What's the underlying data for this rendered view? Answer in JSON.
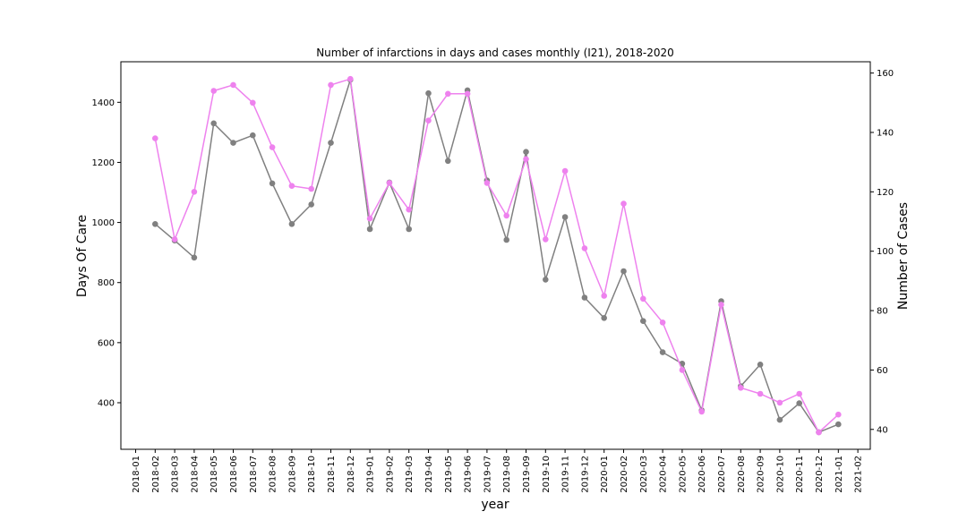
{
  "chart_data": {
    "type": "line",
    "title": "Number of infarctions in days and cases monthly (I21), 2018-2020",
    "xlabel": "year",
    "ylabel_left": "Days Of Care",
    "ylabel_right": "Number of Cases",
    "grid": false,
    "x_ticks": [
      "2018-01",
      "2018-02",
      "2018-03",
      "2018-04",
      "2018-05",
      "2018-06",
      "2018-07",
      "2018-08",
      "2018-09",
      "2018-10",
      "2018-11",
      "2018-12",
      "2019-01",
      "2019-02",
      "2019-03",
      "2019-04",
      "2019-05",
      "2019-06",
      "2019-07",
      "2019-08",
      "2019-09",
      "2019-10",
      "2019-11",
      "2019-12",
      "2020-01",
      "2020-02",
      "2020-03",
      "2020-04",
      "2020-05",
      "2020-06",
      "2020-07",
      "2020-08",
      "2020-09",
      "2020-10",
      "2020-11",
      "2020-12",
      "2021-01",
      "2021-02"
    ],
    "x": [
      "2018-02",
      "2018-03",
      "2018-04",
      "2018-05",
      "2018-06",
      "2018-07",
      "2018-08",
      "2018-09",
      "2018-10",
      "2018-11",
      "2018-12",
      "2019-01",
      "2019-02",
      "2019-03",
      "2019-04",
      "2019-05",
      "2019-06",
      "2019-07",
      "2019-08",
      "2019-09",
      "2019-10",
      "2019-11",
      "2019-12",
      "2020-01",
      "2020-02",
      "2020-03",
      "2020-04",
      "2020-05",
      "2020-06",
      "2020-07",
      "2020-08",
      "2020-09",
      "2020-10",
      "2020-11",
      "2020-12",
      "2021-01"
    ],
    "left_axis": {
      "ylim": [
        245,
        1535
      ],
      "ticks": [
        400,
        600,
        800,
        1000,
        1200,
        1400
      ],
      "color": "#808080"
    },
    "right_axis": {
      "ylim": [
        33.3,
        163.8
      ],
      "ticks": [
        40,
        60,
        80,
        100,
        120,
        140,
        160
      ],
      "color": "#ee82ee"
    },
    "series": [
      {
        "name": "Days Of Care",
        "axis": "left",
        "color": "#808080",
        "values": [
          995,
          940,
          883,
          1330,
          1265,
          1290,
          1130,
          995,
          1060,
          1265,
          1475,
          978,
          1133,
          978,
          1430,
          1205,
          1440,
          1140,
          942,
          1235,
          810,
          1018,
          750,
          682,
          838,
          672,
          568,
          530,
          375,
          738,
          455,
          527,
          343,
          398,
          302,
          328
        ]
      },
      {
        "name": "Number of Cases",
        "axis": "right",
        "color": "#ee82ee",
        "values": [
          138,
          104,
          120,
          154,
          156,
          150,
          135,
          122,
          121,
          156,
          158,
          111,
          123,
          114,
          144,
          153,
          153,
          123,
          112,
          131,
          104,
          127,
          101,
          85,
          116,
          84,
          76,
          60,
          46,
          82,
          54,
          52,
          49,
          52,
          39,
          45
        ]
      }
    ]
  }
}
